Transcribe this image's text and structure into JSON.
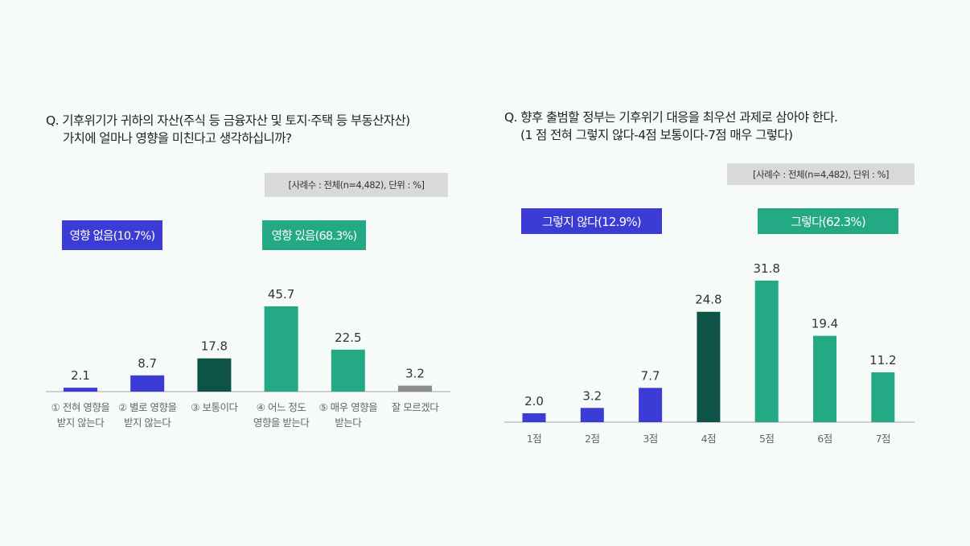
{
  "colors": {
    "blue": "#3b3bd6",
    "dark_green": "#0d5347",
    "green": "#23a984",
    "gray": "#8c8c8c",
    "sample_bg": "#d9d9d9",
    "background": "#f6faf8"
  },
  "left": {
    "question_line1": "Q. 기후위기가 귀하의 자산(주식 등 금융자산 및 토지·주택 등 부동산자산)",
    "question_line2": "가치에 얼마나 영향을 미친다고 생각하십니까?",
    "sample_note": "[사례수 : 전체(n=4,482), 단위 : %]",
    "badge_negative": "영향 없음(10.7%)",
    "badge_positive": "영향 있음(68.3%)"
  },
  "right": {
    "question_line1": "Q. 향후 출범할 정부는 기후위기 대응을 최우선 과제로 삼아야 한다.",
    "question_line2": "(1 점 전혀 그렇지 않다-4점 보통이다-7점 매우 그렇다)",
    "sample_note": "[사례수 : 전체(n=4,482), 단위 : %]",
    "badge_negative": "그렇지 않다(12.9%)",
    "badge_positive": "그렇다(62.3%)"
  },
  "chart_data": [
    {
      "type": "bar",
      "title": "Q. 기후위기가 귀하의 자산(주식 등 금융자산 및 토지·주택 등 부동산자산) 가치에 얼마나 영향을 미친다고 생각하십니까?",
      "categories": [
        [
          "① 전혀 영향을",
          "받지 않는다"
        ],
        [
          "② 별로 영향을",
          "받지 않는다"
        ],
        [
          "③ 보통이다"
        ],
        [
          "④ 어느 정도",
          "영향을 받는다"
        ],
        [
          "⑤ 매우 영향을",
          "받는다"
        ],
        [
          "잘 모르겠다"
        ]
      ],
      "values": [
        2.1,
        8.7,
        17.8,
        45.7,
        22.5,
        3.2
      ],
      "bar_colors": [
        "blue",
        "blue",
        "dark_green",
        "green",
        "green",
        "gray"
      ],
      "grid": false,
      "ylim": [
        0,
        45.7
      ]
    },
    {
      "type": "bar",
      "title": "Q. 향후 출범할 정부는 기후위기 대응을 최우선 과제로 삼아야 한다.",
      "categories": [
        [
          "1점"
        ],
        [
          "2점"
        ],
        [
          "3점"
        ],
        [
          "4점"
        ],
        [
          "5점"
        ],
        [
          "6점"
        ],
        [
          "7점"
        ]
      ],
      "values": [
        2.0,
        3.2,
        7.7,
        24.8,
        31.8,
        19.4,
        11.2
      ],
      "bar_colors": [
        "blue",
        "blue",
        "blue",
        "dark_green",
        "green",
        "green",
        "green"
      ],
      "grid": false,
      "ylim": [
        0,
        31.8
      ]
    }
  ]
}
